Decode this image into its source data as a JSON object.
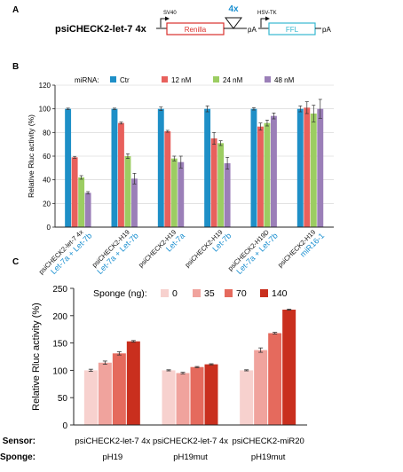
{
  "panel_a": {
    "panel_letter": "A",
    "construct_name": "psiCHECK2-let-7 4x",
    "promoter1": "SV40",
    "gene1": "Renilla",
    "insert": "4x",
    "polyA1": "pA",
    "promoter2": "HSV-TK",
    "gene2": "FFL",
    "polyA2": "pA",
    "colors": {
      "renilla": "#d9302c",
      "insert": "#1a8fd0",
      "ffl": "#35b8d0"
    }
  },
  "chart_data": [
    {
      "panel_letter": "B",
      "type": "bar",
      "legend_title": "miRNA:",
      "legend_placement": "top",
      "ylabel": "Relative Rluc activity (%)",
      "xlabel": "",
      "ylim": [
        0,
        120
      ],
      "yticks": [
        0,
        20,
        40,
        60,
        80,
        100,
        120
      ],
      "grid": true,
      "categories": [
        {
          "line1": "psiCHECK2-let-7 4x",
          "line2": "Let-7a + Let-7b"
        },
        {
          "line1": "psiCHECK2-H19",
          "line2": "Let-7a + Let-7b"
        },
        {
          "line1": "psiCHECK2-H19",
          "line2": "Let-7a"
        },
        {
          "line1": "psiCHECK2-H19",
          "line2": "Let-7b"
        },
        {
          "line1": "psiCHECK2-H19D",
          "line2": "Let-7a + Let-7b"
        },
        {
          "line1": "psiCHECK2-H19",
          "line2": "miR16-1"
        }
      ],
      "series": [
        {
          "name": "Ctr",
          "color": "#1e8fc7",
          "values": [
            100,
            100,
            100,
            100,
            100,
            100
          ],
          "errors": [
            0.6,
            0.6,
            1.5,
            2.5,
            1.0,
            2.5
          ]
        },
        {
          "name": "12 nM",
          "color": "#e8605c",
          "values": [
            59,
            88,
            81,
            75,
            85,
            101
          ],
          "errors": [
            0.8,
            0.8,
            0.8,
            5,
            3,
            5
          ]
        },
        {
          "name": "24 nM",
          "color": "#9ccd62",
          "values": [
            42,
            60,
            58,
            71,
            88,
            96
          ],
          "errors": [
            1.5,
            2,
            2,
            2,
            2.5,
            7
          ]
        },
        {
          "name": "48 nM",
          "color": "#9b7fb8",
          "values": [
            29,
            41,
            55,
            54,
            94,
            100
          ],
          "errors": [
            1,
            4.5,
            5,
            5,
            2.5,
            8
          ]
        }
      ]
    },
    {
      "panel_letter": "C",
      "type": "bar",
      "legend_title": "Sponge (ng):",
      "legend_placement": "top",
      "ylabel": "Relative Rluc activity (%)",
      "xlabel": "",
      "ylim": [
        0,
        250
      ],
      "yticks": [
        0,
        50,
        100,
        150,
        200,
        250
      ],
      "grid": false,
      "row_labels": {
        "sensor": "Sensor:",
        "sponge": "Sponge:"
      },
      "categories": [
        {
          "sensor": "psiCHECK2-let-7 4x",
          "sponge": "pH19"
        },
        {
          "sensor": "psiCHECK2-let-7 4x",
          "sponge": "pH19mut"
        },
        {
          "sensor": "psiCHECK2-miR20",
          "sponge": "pH19mut"
        }
      ],
      "series": [
        {
          "name": "0",
          "color": "#f7d1ce",
          "values": [
            100,
            100,
            100
          ],
          "errors": [
            2,
            1,
            1
          ]
        },
        {
          "name": "35",
          "color": "#f0a39d",
          "values": [
            114,
            95,
            137
          ],
          "errors": [
            3,
            1.5,
            4
          ]
        },
        {
          "name": "70",
          "color": "#e56a5d",
          "values": [
            131,
            106,
            168
          ],
          "errors": [
            3,
            1,
            1.5
          ]
        },
        {
          "name": "140",
          "color": "#c92f1e",
          "values": [
            153,
            111,
            211
          ],
          "errors": [
            1.5,
            1,
            1
          ]
        }
      ]
    }
  ]
}
